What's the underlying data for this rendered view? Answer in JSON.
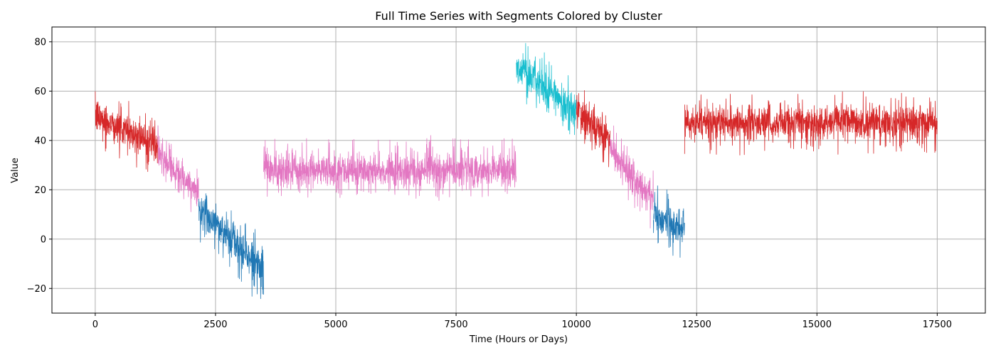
{
  "chart_data": {
    "type": "line",
    "title": "Full Time Series with Segments Colored by Cluster",
    "xlabel": "Time (Hours or Days)",
    "ylabel": "Value",
    "xlim": [
      -900,
      18500
    ],
    "ylim": [
      -30,
      86
    ],
    "x_ticks": [
      0,
      2500,
      5000,
      7500,
      10000,
      12500,
      15000,
      17500
    ],
    "x_tick_labels": [
      "0",
      "2500",
      "5000",
      "7500",
      "10000",
      "12500",
      "15000",
      "17500"
    ],
    "y_ticks": [
      -20,
      0,
      20,
      40,
      60,
      80
    ],
    "y_tick_labels": [
      "−20",
      "0",
      "20",
      "40",
      "60",
      "80"
    ],
    "grid": true,
    "legend": "none",
    "colors": {
      "red": "#d62728",
      "pink": "#e377c2",
      "blue": "#1f77b4",
      "cyan": "#17becf"
    },
    "segments": [
      {
        "cluster": "red",
        "x": [
          0,
          1300
        ],
        "y_start": 50,
        "y_end": 38,
        "noise": 6.5
      },
      {
        "cluster": "pink",
        "x": [
          1300,
          2150
        ],
        "y_start": 34,
        "y_end": 18,
        "noise": 6.5
      },
      {
        "cluster": "blue",
        "x": [
          2150,
          3500
        ],
        "y_start": 13,
        "y_end": -13,
        "noise": 7
      },
      {
        "cluster": "pink",
        "x": [
          3500,
          8750
        ],
        "y_start": 28,
        "y_end": 28,
        "noise": 6.5
      },
      {
        "cluster": "cyan",
        "x": [
          8750,
          10000
        ],
        "y_start": 70,
        "y_end": 52,
        "noise": 7
      },
      {
        "cluster": "red",
        "x": [
          10000,
          10700
        ],
        "y_start": 52,
        "y_end": 40,
        "noise": 6.5
      },
      {
        "cluster": "pink",
        "x": [
          10700,
          11600
        ],
        "y_start": 36,
        "y_end": 16,
        "noise": 6.5
      },
      {
        "cluster": "blue",
        "x": [
          11600,
          12250
        ],
        "y_start": 10,
        "y_end": 4,
        "noise": 6.5
      },
      {
        "cluster": "red",
        "x": [
          12250,
          17500
        ],
        "y_start": 47,
        "y_end": 47,
        "noise": 6.5
      }
    ]
  }
}
